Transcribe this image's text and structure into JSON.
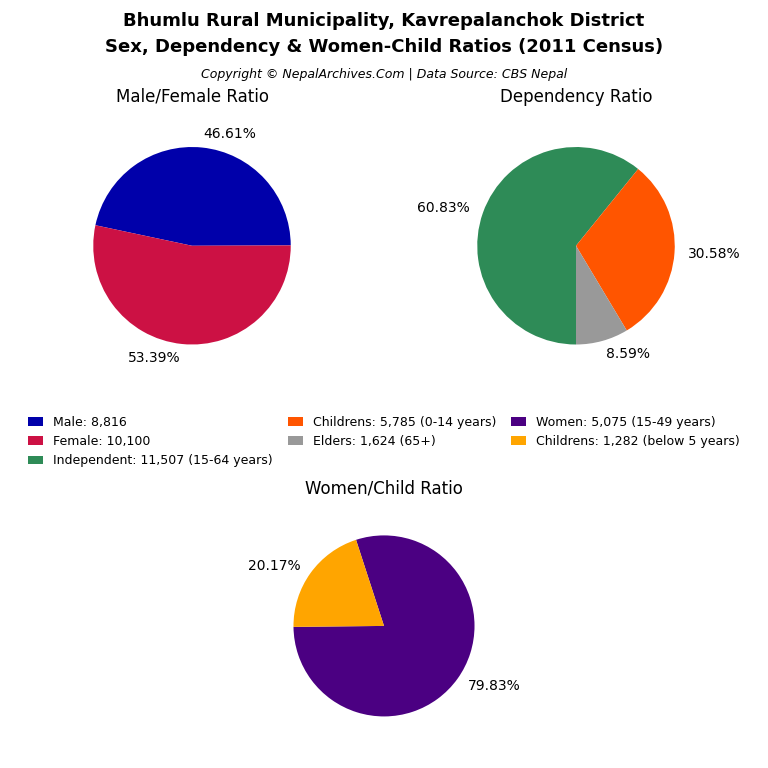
{
  "title": "Bhumlu Rural Municipality, Kavrepalanchok District",
  "subtitle": "Sex, Dependency & Women-Child Ratios (2011 Census)",
  "annotations": [
    "Copyright © NepalArchives.Com | Data Source: CBS Nepal"
  ],
  "legend": "center",
  "chart_data": [
    {
      "type": "pie",
      "title": "Male/Female Ratio",
      "categories": [
        "Male: 8,816",
        "Female: 10,100"
      ],
      "values": [
        46.61,
        53.39
      ],
      "value_labels": [
        "46.61%",
        "53.39%"
      ],
      "colors": [
        "#0000AA",
        "#CC1144"
      ],
      "data_labels": true
    },
    {
      "type": "pie",
      "title": "Dependency Ratio",
      "categories": [
        "Independent: 11,507 (15-64 years)",
        "Childrens: 5,785 (0-14 years)",
        "Elders: 1,624 (65+)"
      ],
      "values": [
        60.83,
        30.58,
        8.59
      ],
      "value_labels": [
        "60.83%",
        "30.58%",
        "8.59%"
      ],
      "colors": [
        "#2E8B57",
        "#FF5500",
        "#999999"
      ],
      "data_labels": true
    },
    {
      "type": "pie",
      "title": "Women/Child Ratio",
      "categories": [
        "Women: 5,075 (15-49 years)",
        "Childrens: 1,282 (below 5 years)"
      ],
      "values": [
        79.83,
        20.17
      ],
      "value_labels": [
        "79.83%",
        "20.17%"
      ],
      "colors": [
        "#4B0082",
        "#FFA500"
      ],
      "data_labels": true
    }
  ]
}
